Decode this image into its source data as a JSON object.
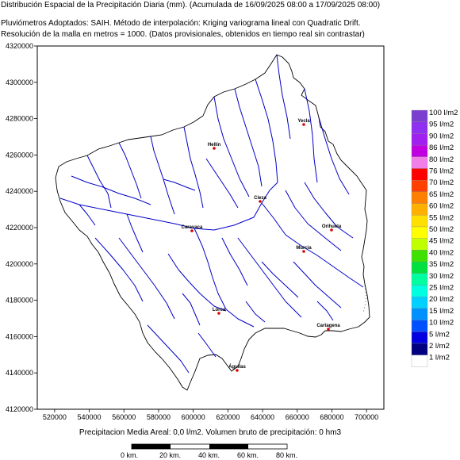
{
  "header": {
    "line1": "Distribución Espacial de la Precipitación Diaria (mm). (Acumulada de 16/09/2025 08:00 a 17/09/2025 08:00)",
    "line2": "Pluviómetros Adoptados: SAIH.  Método de interpolación: Kriging variograma lineal con Quadratic Drift.",
    "line3": "Resolución de la malla en metros = 1000. (Datos provisionales, obtenidos en tiempo real sin contrastar)"
  },
  "axes": {
    "y_ticks": [
      "4320000",
      "4300000",
      "4280000",
      "4260000",
      "4240000",
      "4220000",
      "4200000",
      "4180000",
      "4160000",
      "4140000",
      "4120000"
    ],
    "x_ticks": [
      "520000",
      "540000",
      "560000",
      "580000",
      "600000",
      "620000",
      "640000",
      "660000",
      "680000",
      "700000"
    ],
    "xlim": [
      510000,
      710000
    ],
    "ylim": [
      4120000,
      4320000
    ]
  },
  "legend": {
    "items": [
      {
        "label": "100 l/m2",
        "color": "#7b3fd0"
      },
      {
        "label": "95 l/m2",
        "color": "#8f2ff0"
      },
      {
        "label": "90 l/m2",
        "color": "#a020f0"
      },
      {
        "label": "86 l/m2",
        "color": "#c000e0"
      },
      {
        "label": "80 l/m2",
        "color": "#f080e8"
      },
      {
        "label": "76 l/m2",
        "color": "#ff0000"
      },
      {
        "label": "70 l/m2",
        "color": "#ff4000"
      },
      {
        "label": "65 l/m2",
        "color": "#ff8000"
      },
      {
        "label": "60 l/m2",
        "color": "#ffb000"
      },
      {
        "label": "55 l/m2",
        "color": "#ffe000"
      },
      {
        "label": "50 l/m2",
        "color": "#ffff00"
      },
      {
        "label": "45 l/m2",
        "color": "#c0ff00"
      },
      {
        "label": "40 l/m2",
        "color": "#40e000"
      },
      {
        "label": "35 l/m2",
        "color": "#00e040"
      },
      {
        "label": "30 l/m2",
        "color": "#00ffa0"
      },
      {
        "label": "25 l/m2",
        "color": "#00ffe0"
      },
      {
        "label": "20 l/m2",
        "color": "#00d0ff"
      },
      {
        "label": "15 l/m2",
        "color": "#0090ff"
      },
      {
        "label": "10 l/m2",
        "color": "#0050ff"
      },
      {
        "label": "5 l/m2",
        "color": "#0000e0"
      },
      {
        "label": "2 l/m2",
        "color": "#000080"
      },
      {
        "label": "1 l/m2",
        "color": "#ffffff"
      }
    ]
  },
  "cities": [
    {
      "name": "Yecla"
    },
    {
      "name": "Hellín"
    },
    {
      "name": "Cieza"
    },
    {
      "name": "Caravaca"
    },
    {
      "name": "Orihuela"
    },
    {
      "name": "Murcia"
    },
    {
      "name": "Lorca"
    },
    {
      "name": "Cartagena"
    },
    {
      "name": "Águilas"
    }
  ],
  "footer": {
    "summary": "Precipitacion Media Areal: 0,0 l/m2. Volumen bruto de precipitación: 0 hm3"
  },
  "scale_bar": {
    "labels": [
      "0 km.",
      "20 km.",
      "40 km.",
      "60 km.",
      "80 km."
    ]
  }
}
